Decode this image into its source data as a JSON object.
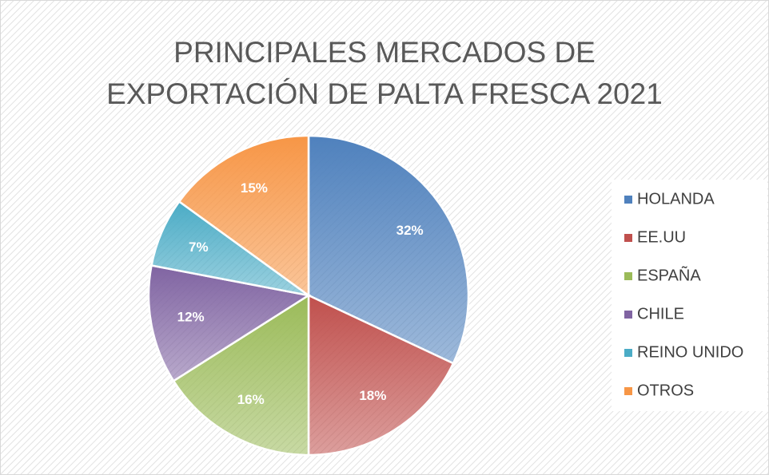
{
  "chart_data": {
    "type": "pie",
    "title": "PRINCIPALES MERCADOS DE EXPORTACIÓN DE PALTA FRESCA 2021",
    "categories": [
      "HOLANDA",
      "EE.UU",
      "ESPAÑA",
      "CHILE",
      "REINO UNIDO",
      "OTROS"
    ],
    "values": [
      32,
      18,
      16,
      12,
      7,
      15
    ],
    "value_labels": [
      "32%",
      "18%",
      "16%",
      "12%",
      "7%",
      "15%"
    ],
    "colors": [
      "#4f81bd",
      "#c0504d",
      "#9bbb59",
      "#8064a2",
      "#4bacc6",
      "#f79646"
    ],
    "legend": "right"
  }
}
